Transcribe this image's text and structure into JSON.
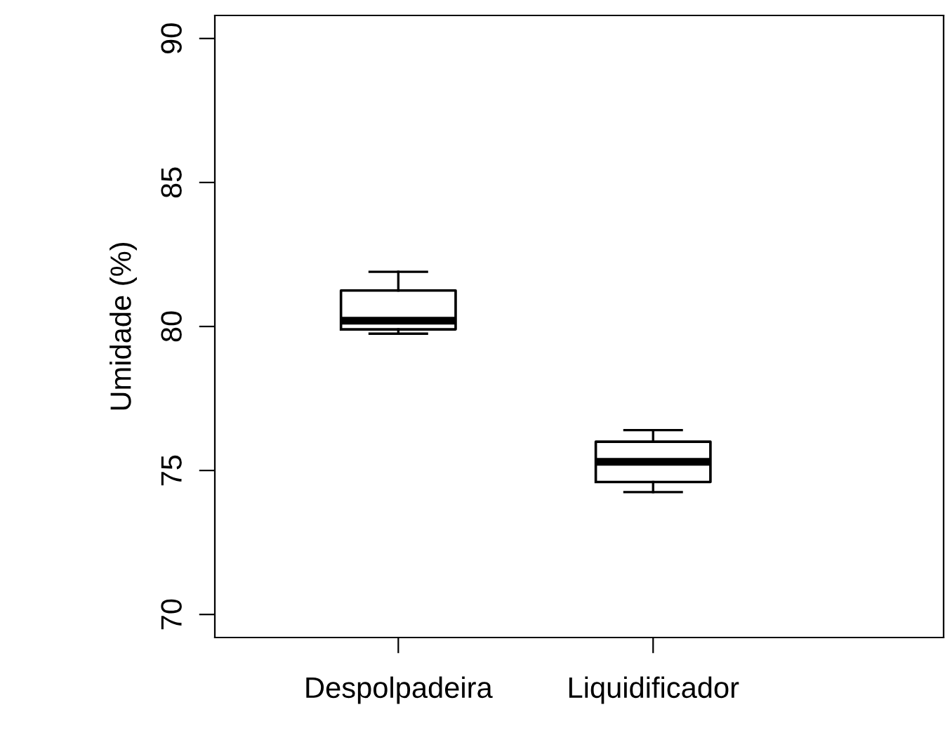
{
  "chart_data": {
    "type": "box",
    "ylabel": "Umidade (%)",
    "categories": [
      "Despolpadeira",
      "Liquidificador"
    ],
    "boxes": [
      {
        "low": 79.75,
        "q1": 79.9,
        "median": 80.2,
        "q3": 81.25,
        "high": 81.9
      },
      {
        "low": 74.25,
        "q1": 74.6,
        "median": 75.3,
        "q3": 76.0,
        "high": 76.4
      }
    ],
    "ylim": [
      69.2,
      90.8
    ],
    "yticks": [
      70,
      75,
      80,
      85,
      90
    ],
    "grid": false,
    "legend": false
  }
}
